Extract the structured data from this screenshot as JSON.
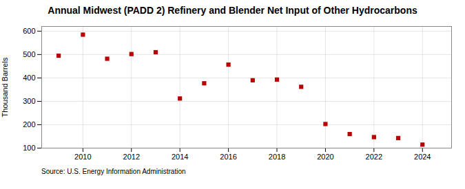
{
  "chart_data": {
    "type": "scatter",
    "title": "Annual Midwest (PADD 2) Refinery and Blender Net Input of Other Hydrocarbons",
    "ylabel": "Thousand Barrels",
    "source": "Source: U.S. Energy Information Administration",
    "x": [
      2009,
      2010,
      2011,
      2012,
      2013,
      2014,
      2015,
      2016,
      2017,
      2018,
      2019,
      2020,
      2021,
      2022,
      2023,
      2024
    ],
    "values": [
      495,
      585,
      482,
      502,
      510,
      312,
      377,
      457,
      390,
      393,
      362,
      203,
      160,
      147,
      143,
      115
    ],
    "xlim": [
      2008.3,
      2025.2
    ],
    "xticks": [
      2010,
      2012,
      2014,
      2016,
      2018,
      2020,
      2022,
      2024
    ],
    "ylim": [
      100,
      620
    ],
    "yticks": [
      100,
      200,
      300,
      400,
      500,
      600
    ],
    "color": "#bb0000",
    "marker": "square",
    "grid": true
  }
}
